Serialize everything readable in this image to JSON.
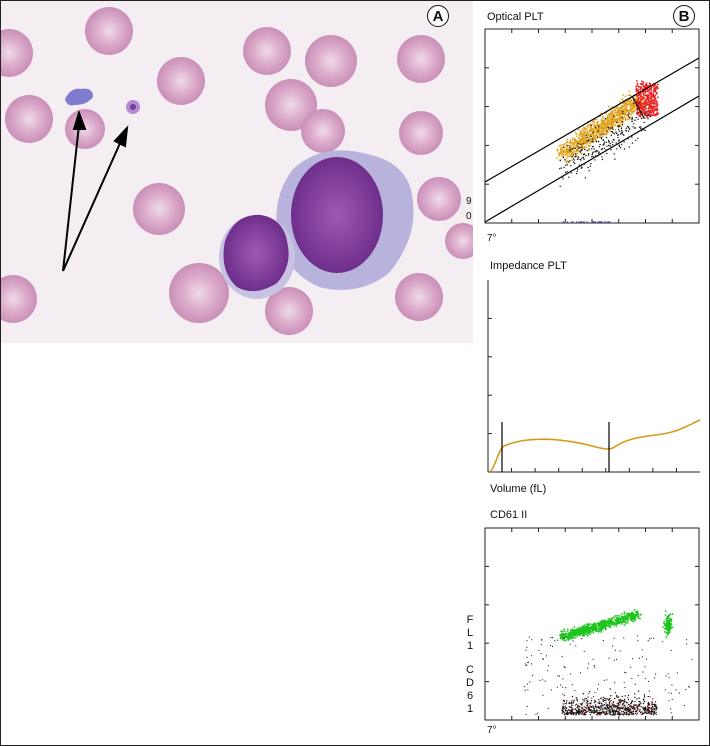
{
  "panels": {
    "a": "A",
    "b": "B"
  },
  "optical": {
    "title": "Optical PLT",
    "axis_x_tick": "7°",
    "axis_y_ticks": [
      "9",
      "0"
    ]
  },
  "impedance": {
    "title": "Impedance PLT",
    "xlabel": "Volume (fL)"
  },
  "cd61": {
    "title": "CD61 II",
    "axis_x_tick": "7°",
    "ylabel_chars": [
      "F",
      "L",
      "1",
      "C",
      "D",
      "6",
      "1"
    ]
  },
  "colors": {
    "rbc": "#d9a6c8",
    "plt_yellow": "#e0a21c",
    "plt_red": "#ee2020",
    "green": "#1fc41f",
    "curve": "#d69a1a"
  }
}
